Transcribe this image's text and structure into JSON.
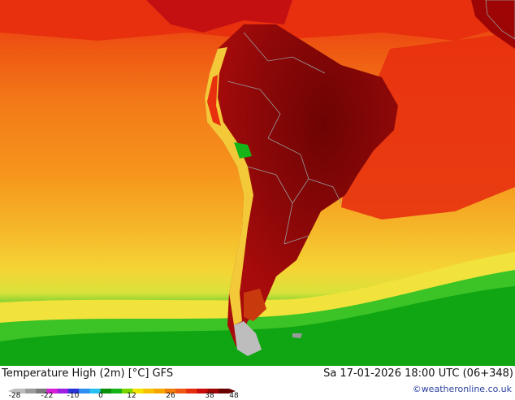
{
  "title": "Temperature High (2m) [°C] GFS",
  "datetime": "Sa 17-01-2026 18:00 UTC (06+348)",
  "credit": "©weatheronline.co.uk",
  "legend": {
    "ticks": [
      "-28",
      "-22",
      "-10",
      "0",
      "12",
      "26",
      "38",
      "48"
    ],
    "colors": [
      "#bdbdbd",
      "#9a9a9a",
      "#7a7a7a",
      "#d61fd6",
      "#9b1fe0",
      "#2a33d8",
      "#2f8ff0",
      "#27c0f0",
      "#0a8f0a",
      "#17b417",
      "#7ad400",
      "#f2e400",
      "#f7c000",
      "#f6a600",
      "#f27e0b",
      "#ee5812",
      "#e52c0d",
      "#c80c0c",
      "#9e0505",
      "#6a0202"
    ]
  },
  "map": {
    "ocean_colors": {
      "north_warm": "#e8300f",
      "tropical": "#f37a18",
      "subtropical": "#f7a21c",
      "mid_lat": "#f5b82a",
      "cool": "#f5e23c",
      "cold": "#18b418"
    },
    "land_colors": {
      "hot": "#8e0808",
      "very_hot": "#6e0303",
      "andes": "#f3e24b",
      "coast": "#e7380f"
    }
  }
}
